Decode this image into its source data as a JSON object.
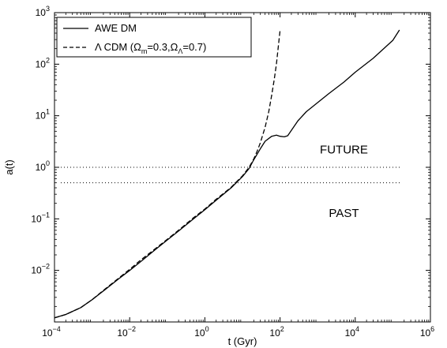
{
  "chart_data": {
    "type": "line",
    "xscale": "log",
    "yscale": "log",
    "xlim": [
      0.0001,
      1000000
    ],
    "ylim": [
      0.001,
      1000
    ],
    "xlabel": "t (Gyr)",
    "ylabel": "a(t)",
    "grid": false,
    "legend_position": "top-left",
    "x_ticks": [
      {
        "value": 0.0001,
        "base": "10",
        "exp": "−4"
      },
      {
        "value": 0.01,
        "base": "10",
        "exp": "−2"
      },
      {
        "value": 1,
        "base": "10",
        "exp": "0"
      },
      {
        "value": 100,
        "base": "10",
        "exp": "2"
      },
      {
        "value": 10000,
        "base": "10",
        "exp": "4"
      },
      {
        "value": 1000000,
        "base": "10",
        "exp": "6"
      }
    ],
    "y_ticks": [
      {
        "value": 0.01,
        "base": "10",
        "exp": "−2"
      },
      {
        "value": 0.1,
        "base": "10",
        "exp": "−1"
      },
      {
        "value": 1,
        "base": "10",
        "exp": "0"
      },
      {
        "value": 10,
        "base": "10",
        "exp": "1"
      },
      {
        "value": 100,
        "base": "10",
        "exp": "2"
      },
      {
        "value": 1000,
        "base": "10",
        "exp": "3"
      }
    ],
    "legend": {
      "awe_label": "AWE DM",
      "lcdm_prefix": "Λ CDM (Ω",
      "lcdm_sub1": "m",
      "lcdm_mid": "=0.3,Ω",
      "lcdm_sub2": "Λ",
      "lcdm_suffix": "=0.7)"
    },
    "series": [
      {
        "name": "AWE DM",
        "style": "solid",
        "x": [
          0.0001,
          0.0002,
          0.0005,
          0.001,
          0.002,
          0.005,
          0.01,
          0.02,
          0.05,
          0.1,
          0.2,
          0.5,
          1,
          2,
          5,
          10,
          15,
          20,
          30,
          40,
          60,
          80,
          100,
          130,
          160,
          200,
          300,
          500,
          1000,
          2000,
          5000,
          10000,
          30000,
          100000,
          150000
        ],
        "y": [
          0.0012,
          0.0014,
          0.0019,
          0.0027,
          0.004,
          0.0068,
          0.01,
          0.015,
          0.026,
          0.039,
          0.058,
          0.1,
          0.15,
          0.23,
          0.4,
          0.66,
          0.95,
          1.4,
          2.3,
          3.2,
          4.0,
          4.2,
          4.0,
          3.9,
          4.1,
          5.2,
          8,
          12,
          18,
          27,
          45,
          70,
          130,
          290,
          460
        ]
      },
      {
        "name": "Λ CDM (Ωm=0.3,ΩΛ=0.7)",
        "style": "dashed",
        "x": [
          0.0001,
          0.0002,
          0.0005,
          0.001,
          0.002,
          0.005,
          0.01,
          0.02,
          0.05,
          0.1,
          0.2,
          0.5,
          1,
          2,
          5,
          10,
          15,
          20,
          25,
          30,
          40,
          50,
          60,
          70,
          80,
          90,
          100
        ],
        "y": [
          0.0012,
          0.0014,
          0.0019,
          0.0027,
          0.0041,
          0.007,
          0.0105,
          0.016,
          0.027,
          0.04,
          0.06,
          0.105,
          0.155,
          0.24,
          0.41,
          0.68,
          1.0,
          1.45,
          2.1,
          3.0,
          6.0,
          12,
          25,
          50,
          100,
          220,
          450
        ]
      }
    ],
    "reference_lines": [
      {
        "y": 1.0,
        "style": "dotted"
      },
      {
        "y": 0.5,
        "style": "dotted"
      }
    ],
    "annotations": [
      {
        "text": "FUTURE",
        "x": 5000,
        "y": 2.2
      },
      {
        "text": "PAST",
        "x": 5000,
        "y": 0.13
      }
    ]
  }
}
